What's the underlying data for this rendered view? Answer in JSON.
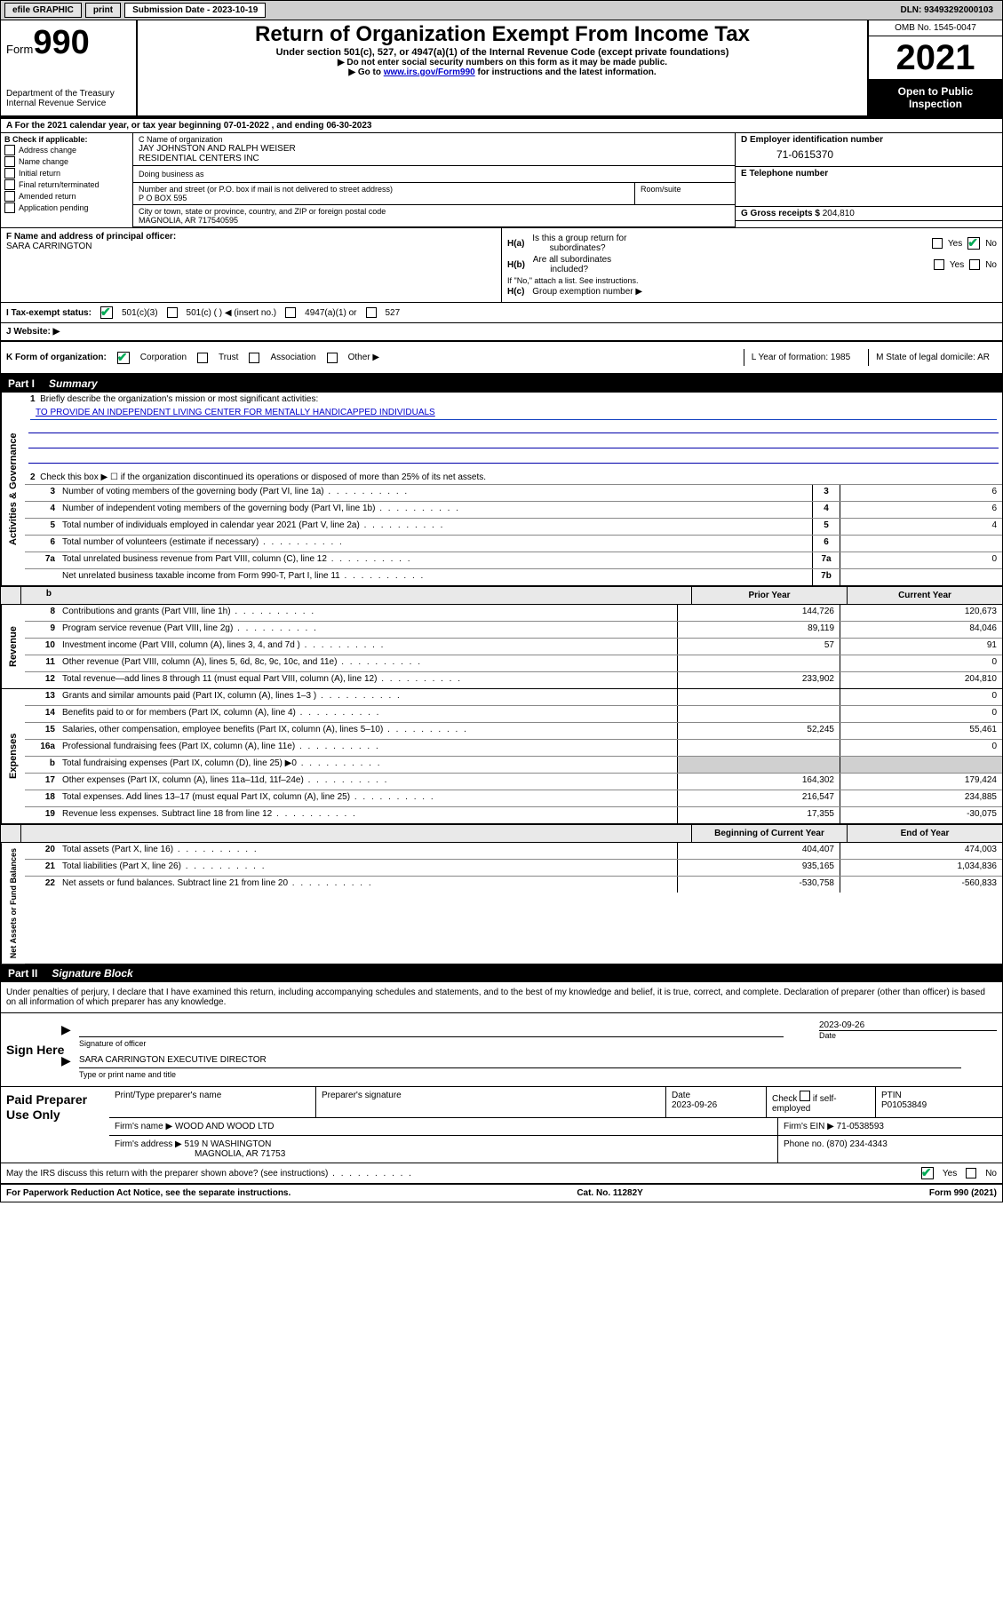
{
  "colors": {
    "header_bg": "#cfcfcf",
    "black": "#000000",
    "white": "#ffffff",
    "link": "#0000cc",
    "check_green": "#00aa55",
    "rule_blue": "#1040c0",
    "grey_fill": "#d0d0d0"
  },
  "top_bar": {
    "efile": "efile GRAPHIC",
    "print": "print",
    "submission_label": "Submission Date - 2023-10-19",
    "dln": "DLN: 93493292000103"
  },
  "header": {
    "form_word": "Form",
    "form_no": "990",
    "dept": "Department of the Treasury\nInternal Revenue Service",
    "title": "Return of Organization Exempt From Income Tax",
    "sub": "Under section 501(c), 527, or 4947(a)(1) of the Internal Revenue Code (except private foundations)",
    "note1": "▶ Do not enter social security numbers on this form as it may be made public.",
    "note2_pre": "▶ Go to ",
    "note2_link": "www.irs.gov/Form990",
    "note2_post": " for instructions and the latest information.",
    "omb": "OMB No. 1545-0047",
    "year": "2021",
    "open": "Open to Public Inspection"
  },
  "period": "A For the 2021 calendar year, or tax year beginning 07-01-2022   , and ending 06-30-2023",
  "box_b": {
    "label": "B Check if applicable:",
    "addr": "Address change",
    "name": "Name change",
    "initial": "Initial return",
    "final": "Final return/terminated",
    "amended": "Amended return",
    "app": "Application pending"
  },
  "box_c": {
    "label": "C Name of organization",
    "name": "JAY JOHNSTON AND RALPH WEISER\nRESIDENTIAL CENTERS INC",
    "dba_label": "Doing business as",
    "street_label": "Number and street (or P.O. box if mail is not delivered to street address)",
    "room_label": "Room/suite",
    "street": "P O BOX 595",
    "city_label": "City or town, state or province, country, and ZIP or foreign postal code",
    "city": "MAGNOLIA, AR  717540595"
  },
  "box_d": {
    "label": "D Employer identification number",
    "value": "71-0615370"
  },
  "box_e": {
    "label": "E Telephone number",
    "value": ""
  },
  "box_g": {
    "label": "G Gross receipts $",
    "value": "204,810"
  },
  "box_f": {
    "label": "F Name and address of principal officer:",
    "value": "SARA CARRINGTON"
  },
  "box_h": {
    "a_label": "H(a)  Is this a group return for subordinates?",
    "a_yes": "Yes",
    "a_no": "No",
    "a_ans": "No",
    "b_label": "H(b)  Are all subordinates included?",
    "b_yes": "Yes",
    "b_no": "No",
    "b_note": "If \"No,\" attach a list. See instructions.",
    "c_label": "H(c)  Group exemption number ▶"
  },
  "tax_status": {
    "label": "I    Tax-exempt status:",
    "c3": "501(c)(3)",
    "c": "501(c) (   ) ◀ (insert no.)",
    "a1": "4947(a)(1) or",
    "s527": "527",
    "checked": "501c3"
  },
  "website": {
    "label": "J    Website: ▶",
    "value": ""
  },
  "k_row": {
    "label": "K Form of organization:",
    "corp": "Corporation",
    "trust": "Trust",
    "assoc": "Association",
    "other": "Other ▶",
    "checked": "corp",
    "l": "L Year of formation: 1985",
    "m": "M State of legal domicile: AR"
  },
  "part1": {
    "label": "Part I",
    "title": "Summary"
  },
  "activities": {
    "tab": "Activities & Governance",
    "l1_text": "1  Briefly describe the organization's mission or most significant activities:",
    "mission": "TO PROVIDE AN INDEPENDENT LIVING CENTER FOR MENTALLY HANDICAPPED INDIVIDUALS",
    "l2": "Check this box ▶ ☐  if the organization discontinued its operations or disposed of more than 25% of its net assets.",
    "rows": [
      {
        "no": "3",
        "text": "Number of voting members of the governing body (Part VI, line 1a)",
        "box": "3",
        "val": "6"
      },
      {
        "no": "4",
        "text": "Number of independent voting members of the governing body (Part VI, line 1b)",
        "box": "4",
        "val": "6"
      },
      {
        "no": "5",
        "text": "Total number of individuals employed in calendar year 2021 (Part V, line 2a)",
        "box": "5",
        "val": "4"
      },
      {
        "no": "6",
        "text": "Total number of volunteers (estimate if necessary)",
        "box": "6",
        "val": ""
      },
      {
        "no": "7a",
        "text": "Total unrelated business revenue from Part VIII, column (C), line 12",
        "box": "7a",
        "val": "0"
      },
      {
        "no": "",
        "text": "Net unrelated business taxable income from Form 990-T, Part I, line 11",
        "box": "7b",
        "val": ""
      }
    ]
  },
  "col_headers": {
    "b": "b",
    "prior": "Prior Year",
    "curr": "Current Year"
  },
  "revenue": {
    "tab": "Revenue",
    "rows": [
      {
        "no": "8",
        "text": "Contributions and grants (Part VIII, line 1h)",
        "prev": "144,726",
        "curr": "120,673"
      },
      {
        "no": "9",
        "text": "Program service revenue (Part VIII, line 2g)",
        "prev": "89,119",
        "curr": "84,046"
      },
      {
        "no": "10",
        "text": "Investment income (Part VIII, column (A), lines 3, 4, and 7d )",
        "prev": "57",
        "curr": "91"
      },
      {
        "no": "11",
        "text": "Other revenue (Part VIII, column (A), lines 5, 6d, 8c, 9c, 10c, and 11e)",
        "prev": "",
        "curr": "0"
      },
      {
        "no": "12",
        "text": "Total revenue—add lines 8 through 11 (must equal Part VIII, column (A), line 12)",
        "prev": "233,902",
        "curr": "204,810"
      }
    ]
  },
  "expenses": {
    "tab": "Expenses",
    "rows": [
      {
        "no": "13",
        "text": "Grants and similar amounts paid (Part IX, column (A), lines 1–3 )",
        "prev": "",
        "curr": "0"
      },
      {
        "no": "14",
        "text": "Benefits paid to or for members (Part IX, column (A), line 4)",
        "prev": "",
        "curr": "0"
      },
      {
        "no": "15",
        "text": "Salaries, other compensation, employee benefits (Part IX, column (A), lines 5–10)",
        "prev": "52,245",
        "curr": "55,461"
      },
      {
        "no": "16a",
        "text": "Professional fundraising fees (Part IX, column (A), line 11e)",
        "prev": "",
        "curr": "0"
      },
      {
        "no": "b",
        "text": "Total fundraising expenses (Part IX, column (D), line 25) ▶0",
        "prev": "GREY",
        "curr": "GREY"
      },
      {
        "no": "17",
        "text": "Other expenses (Part IX, column (A), lines 11a–11d, 11f–24e)",
        "prev": "164,302",
        "curr": "179,424"
      },
      {
        "no": "18",
        "text": "Total expenses. Add lines 13–17 (must equal Part IX, column (A), line 25)",
        "prev": "216,547",
        "curr": "234,885"
      },
      {
        "no": "19",
        "text": "Revenue less expenses. Subtract line 18 from line 12",
        "prev": "17,355",
        "curr": "-30,075"
      }
    ]
  },
  "netassets": {
    "tab": "Net Assets or Fund Balances",
    "headers": {
      "begin": "Beginning of Current Year",
      "end": "End of Year"
    },
    "rows": [
      {
        "no": "20",
        "text": "Total assets (Part X, line 16)",
        "prev": "404,407",
        "curr": "474,003"
      },
      {
        "no": "21",
        "text": "Total liabilities (Part X, line 26)",
        "prev": "935,165",
        "curr": "1,034,836"
      },
      {
        "no": "22",
        "text": "Net assets or fund balances. Subtract line 21 from line 20",
        "prev": "-530,758",
        "curr": "-560,833"
      }
    ]
  },
  "part2": {
    "label": "Part II",
    "title": "Signature Block"
  },
  "sig_intro": "Under penalties of perjury, I declare that I have examined this return, including accompanying schedules and statements, and to the best of my knowledge and belief, it is true, correct, and complete. Declaration of preparer (other than officer) is based on all information of which preparer has any knowledge.",
  "sign": {
    "label": "Sign Here",
    "sig_officer": "Signature of officer",
    "date": "2023-09-26",
    "date_label": "Date",
    "name": "SARA CARRINGTON  EXECUTIVE DIRECTOR",
    "name_label": "Type or print name and title"
  },
  "paid": {
    "label": "Paid Preparer Use Only",
    "h1": "Print/Type preparer's name",
    "h2": "Preparer's signature",
    "h3": "Date",
    "date": "2023-09-26",
    "h4a": "Check",
    "h4b": "if self-employed",
    "h5": "PTIN",
    "ptin": "P01053849",
    "firm_label": "Firm's name    ▶",
    "firm": "WOOD AND WOOD LTD",
    "ein_label": "Firm's EIN ▶",
    "ein": "71-0538593",
    "addr_label": "Firm's address ▶",
    "addr1": "519 N WASHINGTON",
    "addr2": "MAGNOLIA, AR  71753",
    "phone_label": "Phone no.",
    "phone": "(870) 234-4343"
  },
  "may_discuss": {
    "text": "May the IRS discuss this return with the preparer shown above? (see instructions)",
    "yes": "Yes",
    "no": "No",
    "ans": "Yes"
  },
  "footer": {
    "left": "For Paperwork Reduction Act Notice, see the separate instructions.",
    "mid": "Cat. No. 11282Y",
    "right": "Form 990 (2021)"
  }
}
